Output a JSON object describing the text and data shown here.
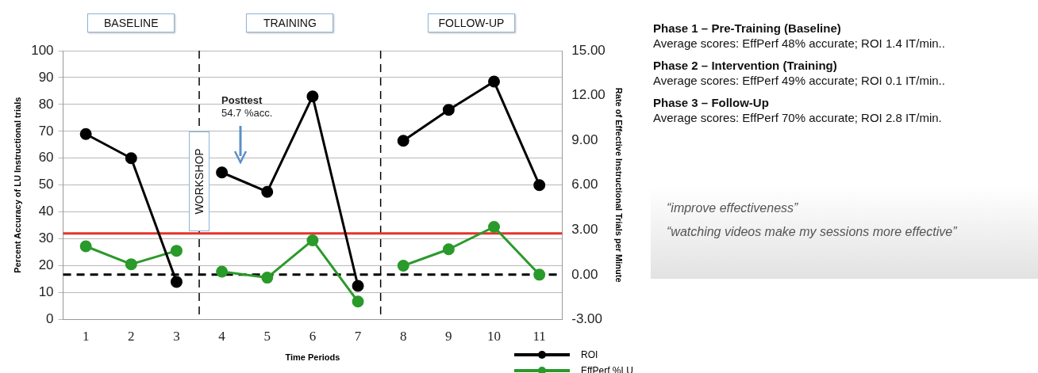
{
  "chart_data": {
    "type": "line",
    "xlabel": "Time Periods",
    "ylabel": "Percent Accuracy of LU Instructional trials",
    "y2label": "Rate of Effective Instructional Trials per Minute",
    "x": [
      1,
      2,
      3,
      3.5,
      4,
      5,
      6,
      7,
      7.5,
      8,
      9,
      10,
      11
    ],
    "series": [
      {
        "name": "ROI",
        "color": "#000000",
        "values": [
          69,
          60,
          14,
          null,
          54.7,
          47.5,
          83,
          12.5,
          null,
          66.5,
          78,
          88.5,
          50
        ]
      },
      {
        "name": "EffPerf %LU",
        "color": "#2a9a2a",
        "axis": "y2",
        "values": [
          1.9,
          0.7,
          1.6,
          null,
          0.2,
          -0.2,
          2.3,
          -1.8,
          null,
          0.6,
          1.7,
          3.2,
          0.0
        ]
      }
    ],
    "xlim": [
      0.5,
      11.5
    ],
    "xticks": [
      1,
      2,
      3,
      4,
      5,
      6,
      7,
      8,
      9,
      10,
      11
    ],
    "ylim": [
      0,
      100
    ],
    "yticks": [
      0,
      10,
      20,
      30,
      40,
      50,
      60,
      70,
      80,
      90,
      100
    ],
    "y2lim": [
      -3,
      15
    ],
    "y2ticks": [
      {
        "value": -3,
        "label": "-3.00"
      },
      {
        "value": 0,
        "label": "0.00"
      },
      {
        "value": 3,
        "label": "3.00"
      },
      {
        "value": 6,
        "label": "6.00"
      },
      {
        "value": 9,
        "label": "9.00"
      },
      {
        "value": 12,
        "label": "12.00"
      },
      {
        "value": 15,
        "label": "15.00"
      }
    ],
    "ref_lines": [
      {
        "axis": "x",
        "value": 3.5,
        "label": "WORKSHOP",
        "color": "#000000",
        "line_style": "dashed"
      },
      {
        "axis": "x",
        "value": 7.5,
        "color": "#000000",
        "line_style": "dashed"
      },
      {
        "axis": "y",
        "value": 32,
        "color": "#e8302a",
        "line_style": "solid"
      },
      {
        "axis": "y2",
        "value": 0,
        "color": "#000000",
        "line_style": "dashed"
      }
    ],
    "annotations": [
      "BASELINE",
      "TRAINING",
      "FOLLOW-UP",
      "Posttest\n54.7 %acc.",
      "Phase 1 – Pre-Training (Baseline)",
      "Average scores: EffPerf 48% accurate; ROI 1.4 IT/min..",
      "Phase 2 – Intervention (Training)",
      "Average scores: EffPerf 49% accurate; ROI 0.1 IT/min..",
      "Phase 3 – Follow-Up",
      "Average scores: EffPerf 70% accurate; ROI 2.8 IT/min.",
      "“improve effectiveness”",
      "“watching videos make my sessions more effective”"
    ],
    "grid": "y",
    "legend": "bottom right",
    "marker": "circle",
    "line_style": "solid"
  }
}
